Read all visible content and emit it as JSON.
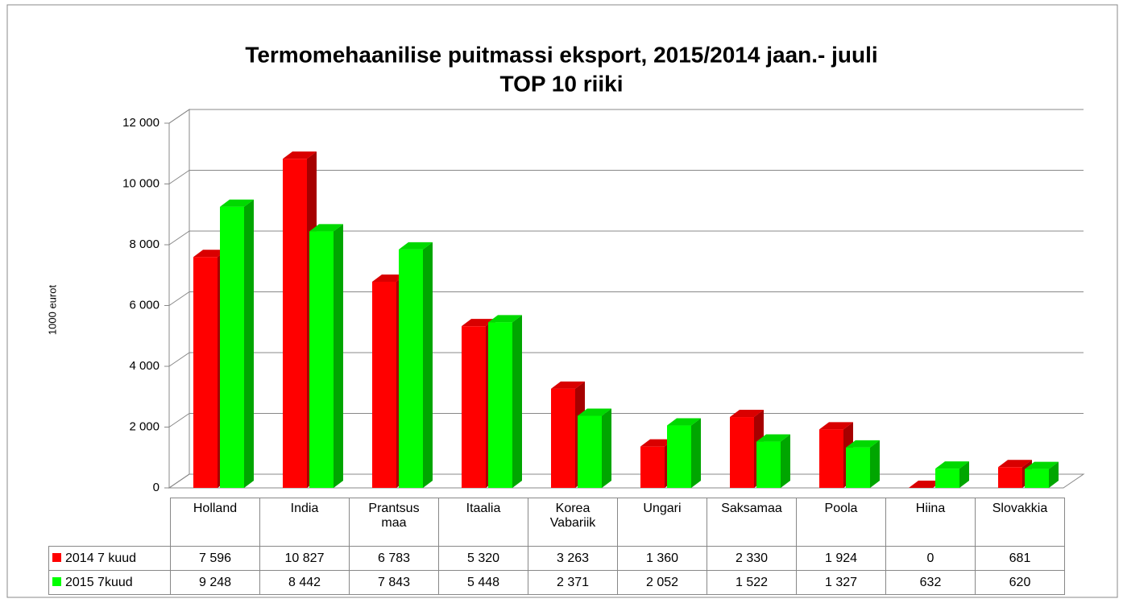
{
  "chart_data": {
    "type": "bar3d",
    "title": "Termomehaanilise puitmassi eksport, 2015/2014 jaan.- juuli",
    "subtitle": "TOP 10 riiki",
    "y_label": "1000 eurot",
    "categories": [
      "Holland",
      "India",
      "Prantsus maa",
      "Itaalia",
      "Korea Vabariik",
      "Ungari",
      "Saksamaa",
      "Poola",
      "Hiina",
      "Slovakkia"
    ],
    "series": [
      {
        "name": "2014 7 kuud",
        "color": "#ff0000",
        "values": [
          7596,
          10827,
          6783,
          5320,
          3263,
          1360,
          2330,
          1924,
          0,
          681
        ],
        "value_labels": [
          "7 596",
          "10 827",
          "6 783",
          "5 320",
          "3 263",
          "1 360",
          "2 330",
          "1 924",
          "0",
          "681"
        ]
      },
      {
        "name": "2015 7kuud",
        "color": "#00ff00",
        "values": [
          9248,
          8442,
          7843,
          5448,
          2371,
          2052,
          1522,
          1327,
          632,
          620
        ],
        "value_labels": [
          "9 248",
          "8 442",
          "7 843",
          "5 448",
          "2 371",
          "2 052",
          "1 522",
          "1 327",
          "632",
          "620"
        ]
      }
    ],
    "ylim": [
      0,
      12000
    ],
    "yticks": [
      0,
      {
        "value": 2000,
        "label": "2 000"
      },
      {
        "value": 4000,
        "label": "4 000"
      },
      {
        "value": 6000,
        "label": "6 000"
      },
      {
        "value": 8000,
        "label": "8 000"
      },
      {
        "value": 10000,
        "label": "10 000"
      },
      {
        "value": 12000,
        "label": "12 000"
      }
    ],
    "grid": true
  }
}
